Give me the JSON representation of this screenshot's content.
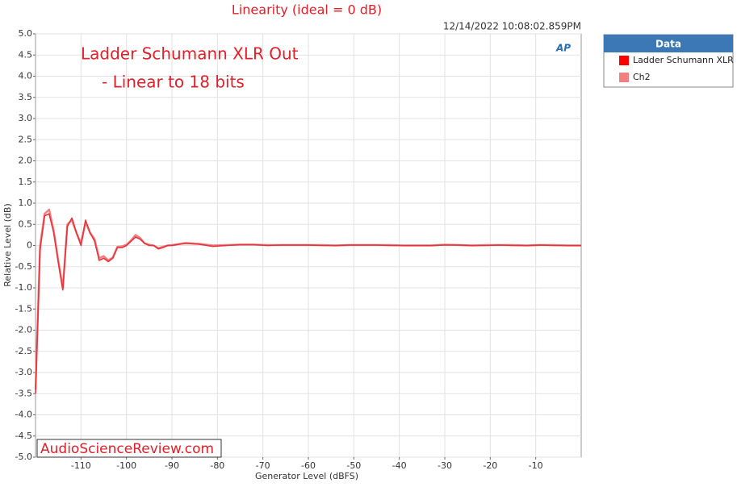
{
  "chart_data": {
    "type": "line",
    "title": "Linearity (ideal = 0 dB)",
    "timestamp": "12/14/2022 10:08:02.859PM",
    "annotations": [
      "Ladder Schumann XLR Out",
      "- Linear to 18 bits"
    ],
    "watermark": "AudioScienceReview.com",
    "logo": "AP",
    "x_label": "Generator Level (dBFS)",
    "y_label": "Relative Level (dB)",
    "legend_title": "Data",
    "legend": "outside-right",
    "grid": true,
    "xlim": [
      -120,
      0
    ],
    "ylim": [
      -5,
      5
    ],
    "xticks": [
      -110,
      -100,
      -90,
      -80,
      -70,
      -60,
      -50,
      -40,
      -30,
      -20,
      -10
    ],
    "yticks": [
      {
        "value": 5,
        "label": "5.0"
      },
      {
        "value": 4.5,
        "label": "4.5"
      },
      {
        "value": 4,
        "label": "4.0"
      },
      {
        "value": 3.5,
        "label": "3.5"
      },
      {
        "value": 3,
        "label": "3.0"
      },
      {
        "value": 2.5,
        "label": "2.5"
      },
      {
        "value": 2,
        "label": "2.0"
      },
      {
        "value": 1.5,
        "label": "1.5"
      },
      {
        "value": 1,
        "label": "1.0"
      },
      0.5,
      0,
      -0.5,
      {
        "value": -1,
        "label": "-1.0"
      },
      -1.5,
      {
        "value": -2,
        "label": "-2.0"
      },
      -2.5,
      {
        "value": -3,
        "label": "-3.0"
      },
      -3.5,
      {
        "value": -4,
        "label": "-4.0"
      },
      -4.5,
      {
        "value": -5,
        "label": "-5.0"
      }
    ],
    "x": [
      -120,
      -119,
      -118,
      -117,
      -116,
      -115,
      -114,
      -113,
      -112,
      -111,
      -110,
      -109,
      -108,
      -107,
      -106,
      -105,
      -104,
      -103,
      -102,
      -101,
      -100,
      -99,
      -98,
      -97,
      -96,
      -95,
      -94,
      -93,
      -92,
      -91,
      -90,
      -87,
      -84,
      -81,
      -78,
      -75,
      -72,
      -69,
      -66,
      -63,
      -60,
      -57,
      -54,
      -51,
      -48,
      -45,
      -42,
      -39,
      -36,
      -33,
      -30,
      -27,
      -24,
      -21,
      -18,
      -15,
      -12,
      -9,
      -6,
      -3,
      0
    ],
    "series": [
      {
        "name": "Ladder Schumann XLR",
        "color": "#ff0000",
        "line_color": "#e8323c",
        "values": [
          -3.5,
          -0.1,
          0.7,
          0.75,
          0.3,
          -0.4,
          -1.05,
          0.45,
          0.65,
          0.3,
          0.0,
          0.6,
          0.3,
          0.1,
          -0.35,
          -0.3,
          -0.38,
          -0.3,
          -0.05,
          -0.05,
          0.0,
          0.1,
          0.2,
          0.15,
          0.05,
          0.0,
          0.0,
          -0.08,
          -0.05,
          0.0,
          0.0,
          0.05,
          0.03,
          -0.02,
          0.0,
          0.02,
          0.02,
          0.0,
          0.01,
          0.01,
          0.01,
          0.0,
          0.0,
          0.01,
          0.01,
          0.01,
          0.0,
          0.0,
          0.0,
          0.0,
          0.01,
          0.01,
          0.0,
          0.0,
          0.01,
          0.0,
          0.0,
          0.01,
          0.0,
          0.0,
          0.0
        ]
      },
      {
        "name": "Ch2",
        "color": "#f08080",
        "line_color": "#f08080",
        "values": [
          -3.4,
          0.0,
          0.75,
          0.85,
          0.35,
          -0.35,
          -1.0,
          0.5,
          0.6,
          0.3,
          0.05,
          0.55,
          0.3,
          0.15,
          -0.3,
          -0.25,
          -0.35,
          -0.28,
          -0.03,
          -0.02,
          0.02,
          0.12,
          0.25,
          0.18,
          0.05,
          0.02,
          0.0,
          -0.06,
          -0.03,
          0.0,
          0.01,
          0.06,
          0.04,
          0.0,
          0.01,
          0.02,
          0.02,
          0.01,
          0.01,
          0.01,
          0.01,
          0.01,
          0.0,
          0.01,
          0.01,
          0.01,
          0.01,
          0.0,
          0.0,
          0.0,
          0.02,
          0.01,
          0.0,
          0.01,
          0.01,
          0.01,
          0.0,
          0.01,
          0.01,
          0.0,
          0.0
        ]
      }
    ]
  }
}
